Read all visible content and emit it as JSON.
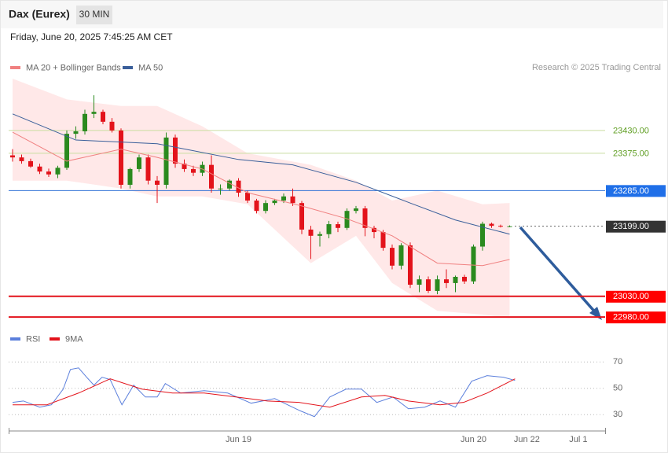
{
  "header": {
    "title": "Dax (Eurex)",
    "timeframe": "30 MIN",
    "date": "Friday, June 20, 2025 7:45:25 AM CET",
    "credit": "Research © 2025 Trading Central"
  },
  "chart_data": [
    {
      "type": "candlestick",
      "ylim": [
        22967,
        23555
      ],
      "open": [
        23370,
        23365,
        23356,
        23343,
        23331,
        23324,
        23340,
        23422,
        23428,
        23470,
        23475,
        23451,
        23430,
        23299,
        23337,
        23365,
        23309,
        23299,
        23413,
        23350,
        23337,
        23328,
        23347,
        23290,
        23290,
        23309,
        23280,
        23261,
        23236,
        23255,
        23261,
        23271,
        23255,
        23191,
        23176,
        23180,
        23204,
        23195,
        23236,
        23242,
        23195,
        23185,
        23147,
        23104,
        23153,
        23058,
        23071,
        23043,
        23071,
        23062,
        23077,
        23066,
        23150,
        23205,
        23200,
        23199
      ],
      "high": [
        23385,
        23372,
        23362,
        23350,
        23338,
        23345,
        23430,
        23440,
        23480,
        23515,
        23480,
        23460,
        23435,
        23340,
        23372,
        23372,
        23320,
        23425,
        23420,
        23360,
        23345,
        23355,
        23370,
        23300,
        23312,
        23315,
        23285,
        23265,
        23262,
        23265,
        23278,
        23290,
        23260,
        23200,
        23186,
        23212,
        23210,
        23242,
        23248,
        23248,
        23200,
        23190,
        23155,
        23158,
        23160,
        23080,
        23078,
        23080,
        23095,
        23080,
        23082,
        23155,
        23210,
        23208,
        23203,
        23201
      ],
      "low": [
        23355,
        23350,
        23340,
        23325,
        23318,
        23315,
        23335,
        23410,
        23420,
        23460,
        23445,
        23425,
        23290,
        23290,
        23330,
        23300,
        23255,
        23290,
        23340,
        23330,
        23320,
        23320,
        23280,
        23275,
        23285,
        23270,
        23255,
        23230,
        23230,
        23250,
        23255,
        23248,
        23180,
        23120,
        23150,
        23170,
        23185,
        23190,
        23230,
        23175,
        23170,
        23140,
        23095,
        23095,
        23050,
        23040,
        23038,
        23035,
        23050,
        23040,
        23060,
        23060,
        23140,
        23195,
        23196,
        23197
      ],
      "close": [
        23365,
        23356,
        23343,
        23331,
        23324,
        23340,
        23422,
        23428,
        23470,
        23475,
        23451,
        23430,
        23299,
        23337,
        23365,
        23309,
        23299,
        23413,
        23350,
        23337,
        23328,
        23347,
        23290,
        23290,
        23309,
        23280,
        23261,
        23236,
        23255,
        23261,
        23271,
        23255,
        23191,
        23176,
        23180,
        23204,
        23195,
        23236,
        23242,
        23195,
        23185,
        23147,
        23104,
        23153,
        23058,
        23071,
        23043,
        23071,
        23062,
        23077,
        23066,
        23150,
        23205,
        23200,
        23199,
        23199
      ],
      "up_color": "#2a8a1e",
      "down_color": "#e3131b",
      "band": {
        "x": [
          0,
          6,
          12,
          16,
          21,
          26,
          33,
          38,
          42,
          47,
          52,
          55
        ],
        "upper": [
          23555,
          23505,
          23489,
          23489,
          23440,
          23375,
          23347,
          23309,
          23261,
          23285,
          23252,
          23255
        ],
        "lower": [
          23309,
          23309,
          23290,
          23271,
          23271,
          23252,
          23110,
          23176,
          23062,
          22995,
          22986,
          22977
        ],
        "color": "#ffdede"
      },
      "series": [
        {
          "name": "MA 20 + Bollinger Bands",
          "color": "#f08080",
          "x": [
            0,
            6,
            12,
            16,
            21,
            26,
            32,
            37,
            42,
            47,
            52,
            55
          ],
          "values": [
            23426,
            23356,
            23385,
            23365,
            23337,
            23280,
            23248,
            23217,
            23176,
            23110,
            23104,
            23119
          ]
        },
        {
          "name": "MA 50",
          "color": "#3a5f9a",
          "x": [
            0,
            7,
            16,
            25,
            31,
            38,
            44,
            49,
            55
          ],
          "values": [
            23470,
            23407,
            23398,
            23360,
            23347,
            23305,
            23255,
            23214,
            23180
          ]
        }
      ],
      "levels": [
        {
          "value": 23430,
          "label": "23430.00",
          "style": "support-green"
        },
        {
          "value": 23375,
          "label": "23375.00",
          "style": "support-green"
        },
        {
          "value": 23285,
          "label": "23285.00",
          "style": "blue"
        },
        {
          "value": 23199,
          "label": "23199.00",
          "style": "last"
        },
        {
          "value": 23030,
          "label": "23030.00",
          "style": "red"
        },
        {
          "value": 22980,
          "label": "22980.00",
          "style": "red"
        }
      ],
      "xticks": [
        {
          "value": 25,
          "label": "Jun 19"
        },
        {
          "value": 51,
          "label": "Jun 20"
        },
        {
          "value": 56.9,
          "label": "Jun 22"
        },
        {
          "value": 62.6,
          "label": "Jul 1"
        }
      ]
    },
    {
      "type": "line",
      "ylim": [
        20,
        80
      ],
      "yticks": [
        70,
        50,
        30
      ],
      "series": [
        {
          "name": "RSI",
          "color": "#5b7fdc",
          "x": [
            0,
            1.2,
            3,
            4.3,
            5.6,
            6.4,
            7.3,
            8.2,
            9,
            9.9,
            10.8,
            12.1,
            13.4,
            14.7,
            16,
            16.9,
            18.6,
            21.2,
            23.8,
            26.4,
            29,
            31.7,
            33.4,
            35.1,
            36.9,
            38.6,
            40.3,
            42.1,
            43.8,
            45.6,
            47.3,
            49,
            50.8,
            52.5,
            54.3,
            55.6
          ],
          "values": [
            39.3,
            40.4,
            35.7,
            37.5,
            49.4,
            64.3,
            65.5,
            58.4,
            52.4,
            58.4,
            56.6,
            37.5,
            52.4,
            43.4,
            43.4,
            53.6,
            46.4,
            48.2,
            46.4,
            38.7,
            42.2,
            33.3,
            28.5,
            43.4,
            49.4,
            49.4,
            39.3,
            43.4,
            34.5,
            35.7,
            40.4,
            35.7,
            55.4,
            59.6,
            58.4,
            56
          ]
        },
        {
          "name": "9MA",
          "color": "#e3131b",
          "x": [
            0,
            3.8,
            7.3,
            10.8,
            14.3,
            17.7,
            21.2,
            24.7,
            28.2,
            31.7,
            35.1,
            38.6,
            41.2,
            43.8,
            47.3,
            49.9,
            52.5,
            55.6
          ],
          "values": [
            37.5,
            37.5,
            46.4,
            57.2,
            49.4,
            46.4,
            46.4,
            43.4,
            40.4,
            39.3,
            35.7,
            43.4,
            44.6,
            40.4,
            37.5,
            39.3,
            46.4,
            57.2
          ]
        }
      ]
    }
  ]
}
